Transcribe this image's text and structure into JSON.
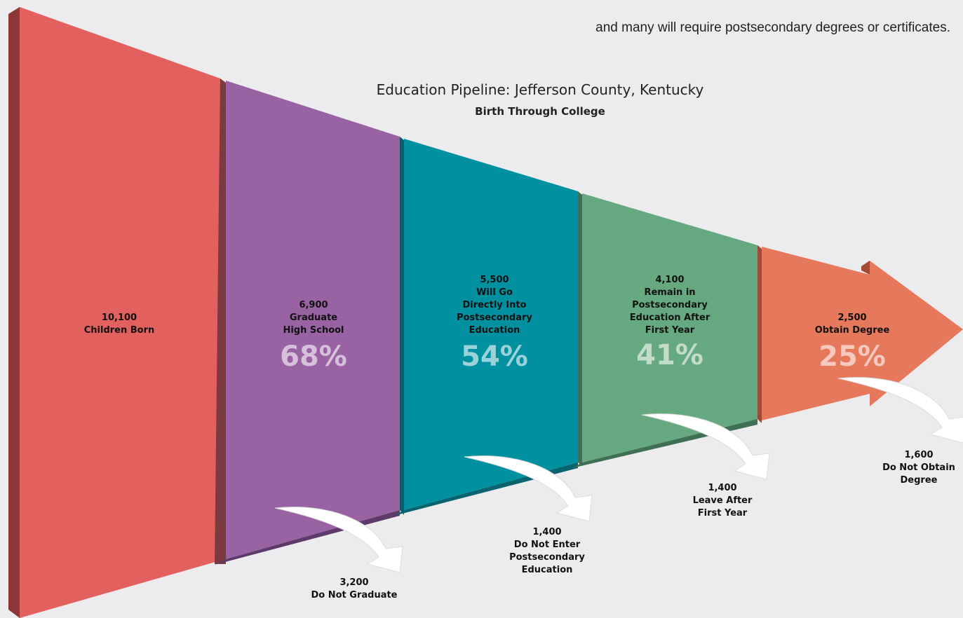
{
  "header": {
    "text": "and many will require postsecondary degrees or certificates."
  },
  "title": "Education Pipeline: Jefferson County, Kentucky",
  "subtitle": "Birth Through College",
  "stages": [
    {
      "value": "10,100",
      "label": [
        "Children Born"
      ]
    },
    {
      "value": "6,900",
      "label": [
        "Graduate",
        "High School"
      ],
      "percent": "68%"
    },
    {
      "value": "5,500",
      "label": [
        "Will Go",
        "Directly Into",
        "Postsecondary",
        "Education"
      ],
      "percent": "54%"
    },
    {
      "value": "4,100",
      "label": [
        "Remain in",
        "Postsecondary",
        "Education After",
        "First Year"
      ],
      "percent": "41%"
    },
    {
      "value": "2,500",
      "label": [
        "Obtain Degree"
      ],
      "percent": "25%"
    }
  ],
  "dropouts": [
    {
      "value": "3,200",
      "label": [
        "Do Not Graduate"
      ]
    },
    {
      "value": "1,400",
      "label": [
        "Do Not Enter",
        "Postsecondary",
        "Education"
      ]
    },
    {
      "value": "1,400",
      "label": [
        "Leave After",
        "First Year"
      ]
    },
    {
      "value": "1,600",
      "label": [
        "Do Not Obtain",
        "Degree"
      ]
    }
  ]
}
